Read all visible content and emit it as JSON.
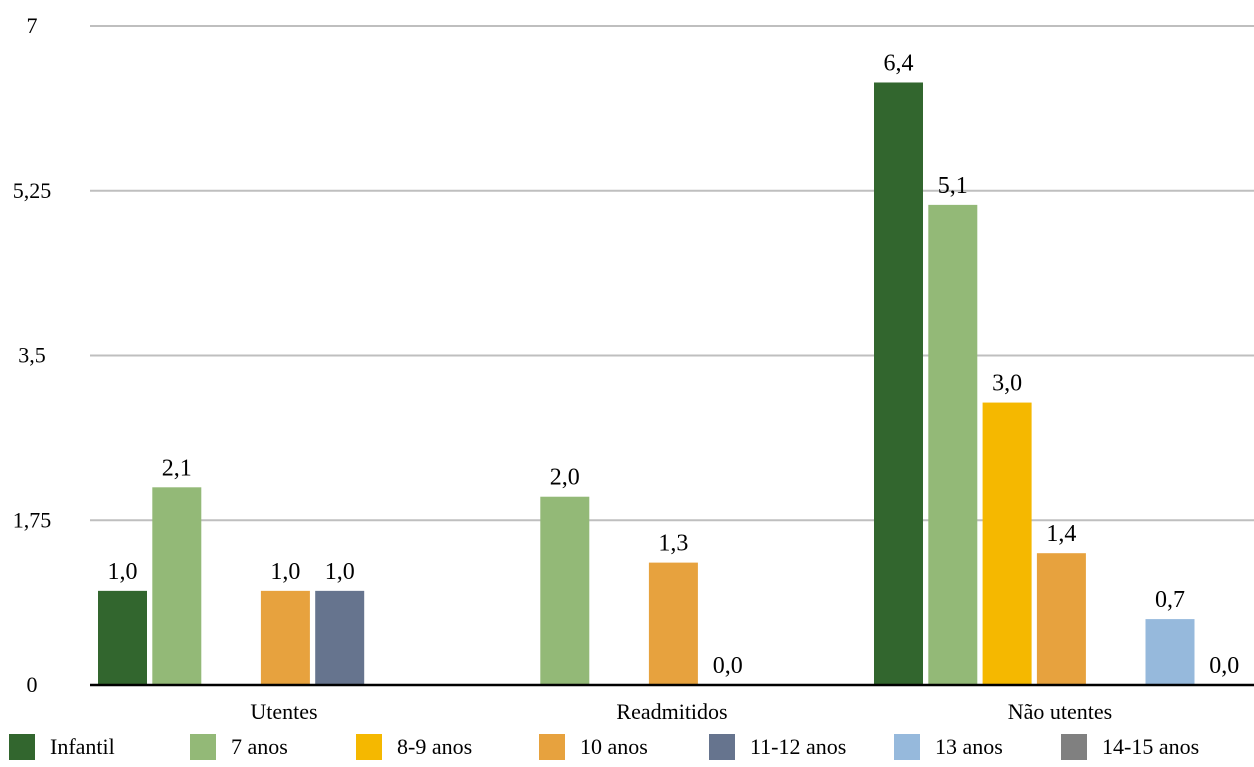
{
  "chart_data": {
    "type": "bar",
    "categories": [
      "Utentes",
      "Readmitidos",
      "Não utentes"
    ],
    "series": [
      {
        "name": "Infantil",
        "color": "#32662e",
        "values": [
          1.0,
          null,
          6.4
        ],
        "labels": [
          "1,0",
          "",
          "6,4"
        ]
      },
      {
        "name": "7 anos",
        "color": "#93b977",
        "values": [
          2.1,
          2.0,
          5.1
        ],
        "labels": [
          "2,1",
          "2,0",
          "5,1"
        ]
      },
      {
        "name": "8-9 anos",
        "color": "#f5b800",
        "values": [
          null,
          null,
          3.0
        ],
        "labels": [
          "",
          "",
          "3,0"
        ]
      },
      {
        "name": "10 anos",
        "color": "#e7a23e",
        "values": [
          1.0,
          1.3,
          1.4
        ],
        "labels": [
          "1,0",
          "1,3",
          "1,4"
        ]
      },
      {
        "name": "11-12 anos",
        "color": "#66748e",
        "values": [
          1.0,
          0.0,
          null
        ],
        "labels": [
          "1,0",
          "0,0",
          ""
        ]
      },
      {
        "name": "13 anos",
        "color": "#96b9dc",
        "values": [
          null,
          null,
          0.7
        ],
        "labels": [
          "",
          "",
          "0,7"
        ]
      },
      {
        "name": "14-15 anos",
        "color": "#808080",
        "values": [
          null,
          null,
          0.0
        ],
        "labels": [
          "",
          "",
          "0,0"
        ]
      }
    ],
    "ylim": [
      0,
      7
    ],
    "yticks": [
      0,
      1.75,
      3.5,
      5.25,
      7
    ],
    "ytick_labels": [
      "0",
      "1,75",
      "3,5",
      "5,25",
      "7"
    ],
    "grid": true,
    "legend_position": "bottom",
    "title": "",
    "xlabel": "",
    "ylabel": ""
  }
}
